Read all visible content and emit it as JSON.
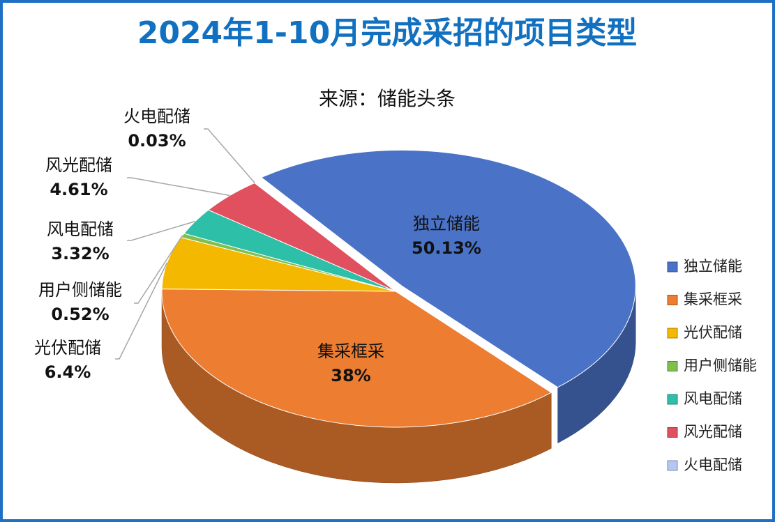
{
  "chart_data": {
    "type": "pie3d",
    "title": "2024年1-10月完成采招的项目类型",
    "subtitle": "来源：储能头条",
    "categories": [
      "独立储能",
      "集采框采",
      "光伏配储",
      "用户侧储能",
      "风电配储",
      "风光配储",
      "火电配储"
    ],
    "values": [
      50.13,
      38,
      6.4,
      0.52,
      3.32,
      4.61,
      0.03
    ],
    "value_labels": [
      "50.13%",
      "38%",
      "6.4%",
      "0.52%",
      "3.32%",
      "4.61%",
      "0.03%"
    ],
    "colors": [
      "#4a72c6",
      "#ec7d31",
      "#f5b800",
      "#7fbf4d",
      "#2ebfa8",
      "#e0505e",
      "#b4c7f2"
    ],
    "legend": "right"
  }
}
